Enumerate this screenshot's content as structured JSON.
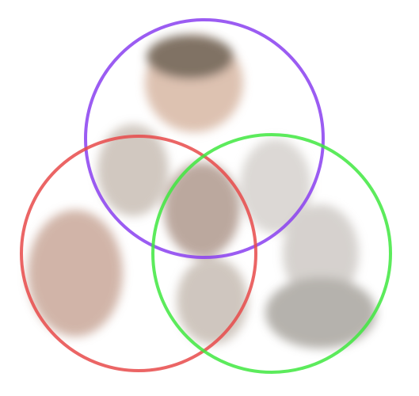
{
  "diagram": {
    "circles": [
      {
        "color": "#8a3ff0"
      },
      {
        "color": "#e84a4a"
      },
      {
        "color": "#3fe83f"
      }
    ]
  }
}
